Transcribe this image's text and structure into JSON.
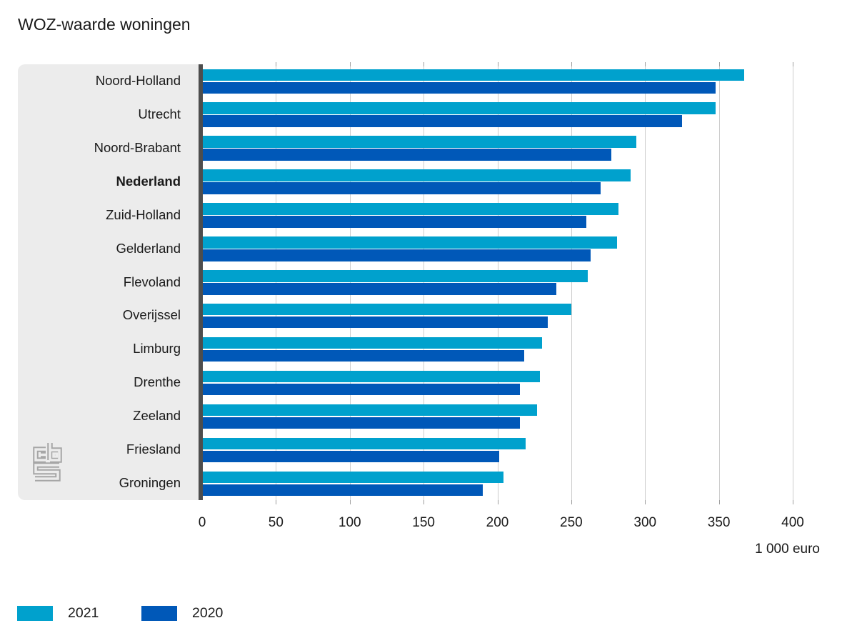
{
  "title": "WOZ-waarde woningen",
  "unit_label": "1 000 euro",
  "colors": {
    "series_2021": "#00a1cd",
    "series_2020": "#0058b8",
    "panel_bg": "#ececec",
    "axis_line": "#4d4d4d",
    "gridline": "#cccccc",
    "text": "#1a1a1a",
    "logo_gray": "#a6a6a6"
  },
  "legend": {
    "items": [
      {
        "label": "2021",
        "color": "#00a1cd"
      },
      {
        "label": "2020",
        "color": "#0058b8"
      }
    ]
  },
  "logo": {
    "name": "cbs-logo"
  },
  "chart_data": {
    "type": "bar",
    "orientation": "horizontal",
    "title": "WOZ-waarde woningen",
    "xlabel": "1 000 euro",
    "xlim": [
      0,
      400
    ],
    "xticks": [
      0,
      50,
      100,
      150,
      200,
      250,
      300,
      350,
      400
    ],
    "grid": true,
    "legend_position": "bottom-left",
    "categories": [
      "Noord-Holland",
      "Utrecht",
      "Noord-Brabant",
      "Nederland",
      "Zuid-Holland",
      "Gelderland",
      "Flevoland",
      "Overijssel",
      "Limburg",
      "Drenthe",
      "Zeeland",
      "Friesland",
      "Groningen"
    ],
    "emphasized_category": "Nederland",
    "series": [
      {
        "name": "2021",
        "color": "#00a1cd",
        "values": [
          367,
          348,
          294,
          290,
          282,
          281,
          261,
          250,
          230,
          229,
          227,
          219,
          204
        ]
      },
      {
        "name": "2020",
        "color": "#0058b8",
        "values": [
          348,
          325,
          277,
          270,
          260,
          263,
          240,
          234,
          218,
          215,
          215,
          201,
          190
        ]
      }
    ]
  }
}
